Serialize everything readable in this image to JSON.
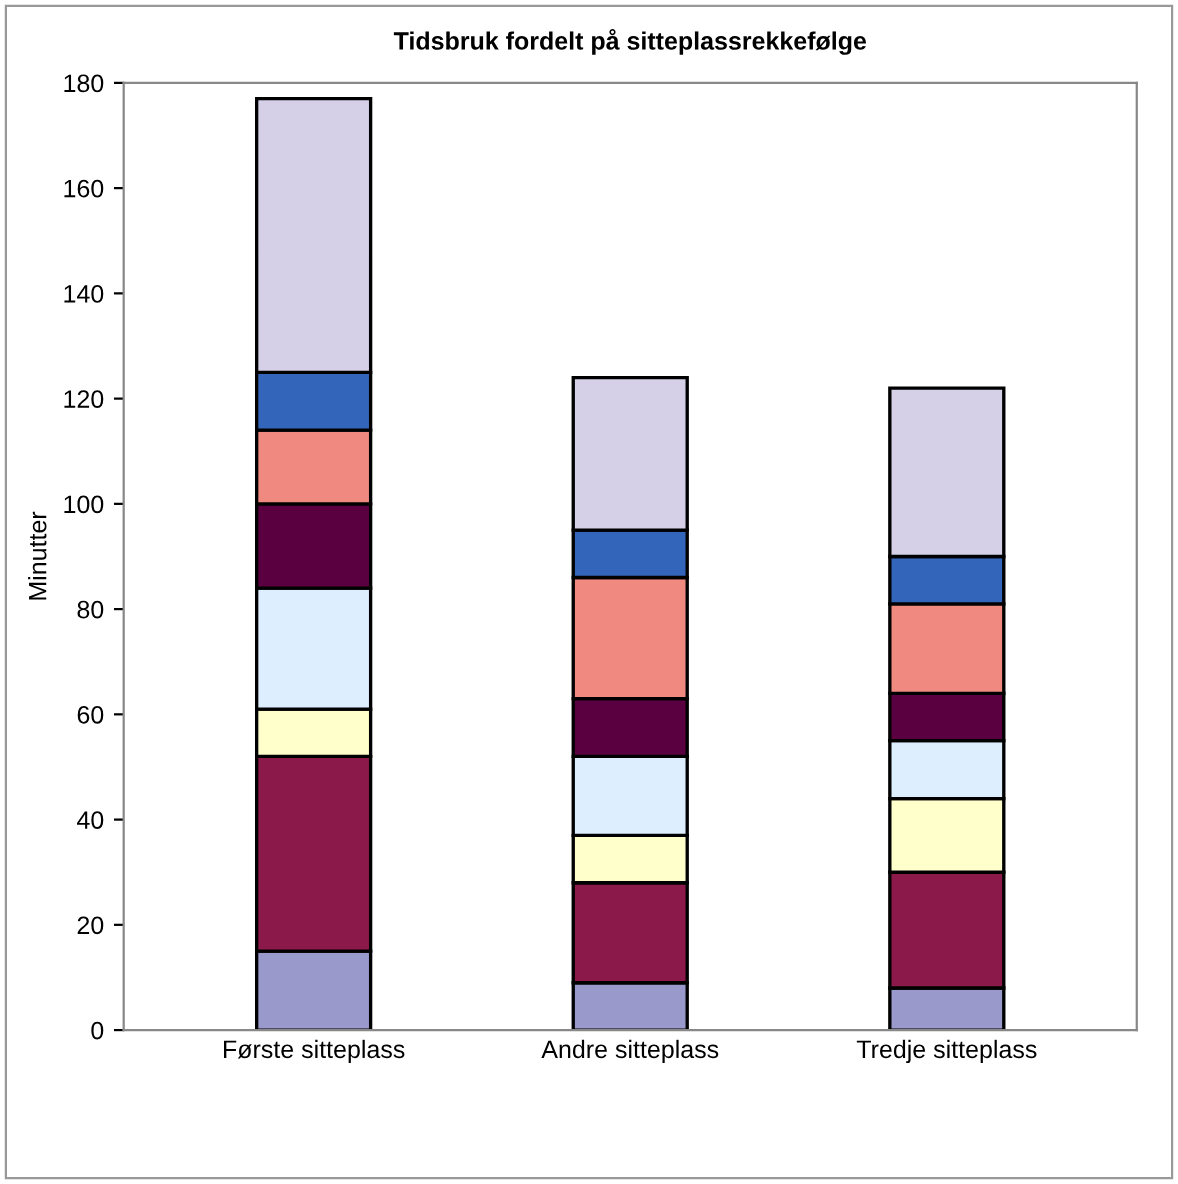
{
  "chart_data": {
    "type": "bar",
    "title": "Tidsbruk fordelt på sitteplassrekkefølge",
    "ylabel": "Minutter",
    "categories": [
      "Første sitteplass",
      "Andre sitteplass",
      "Tredje sitteplass"
    ],
    "stacked": true,
    "ylim": [
      0,
      180
    ],
    "yticks": [
      0,
      20,
      40,
      60,
      80,
      100,
      120,
      140,
      160,
      180
    ],
    "grid": false,
    "legend": false,
    "series": [
      {
        "color": "#9999cc",
        "values": [
          15,
          9,
          8
        ]
      },
      {
        "color": "#8b1a4a",
        "values": [
          37,
          19,
          22
        ]
      },
      {
        "color": "#ffffcc",
        "values": [
          9,
          9,
          14
        ]
      },
      {
        "color": "#ddeeff",
        "values": [
          23,
          15,
          11
        ]
      },
      {
        "color": "#5a0040",
        "values": [
          16,
          11,
          9
        ]
      },
      {
        "color": "#f08a80",
        "values": [
          14,
          23,
          17
        ]
      },
      {
        "color": "#3366bb",
        "values": [
          11,
          9,
          9
        ]
      },
      {
        "color": "#d5d0e8",
        "values": [
          52,
          29,
          32
        ]
      }
    ]
  }
}
